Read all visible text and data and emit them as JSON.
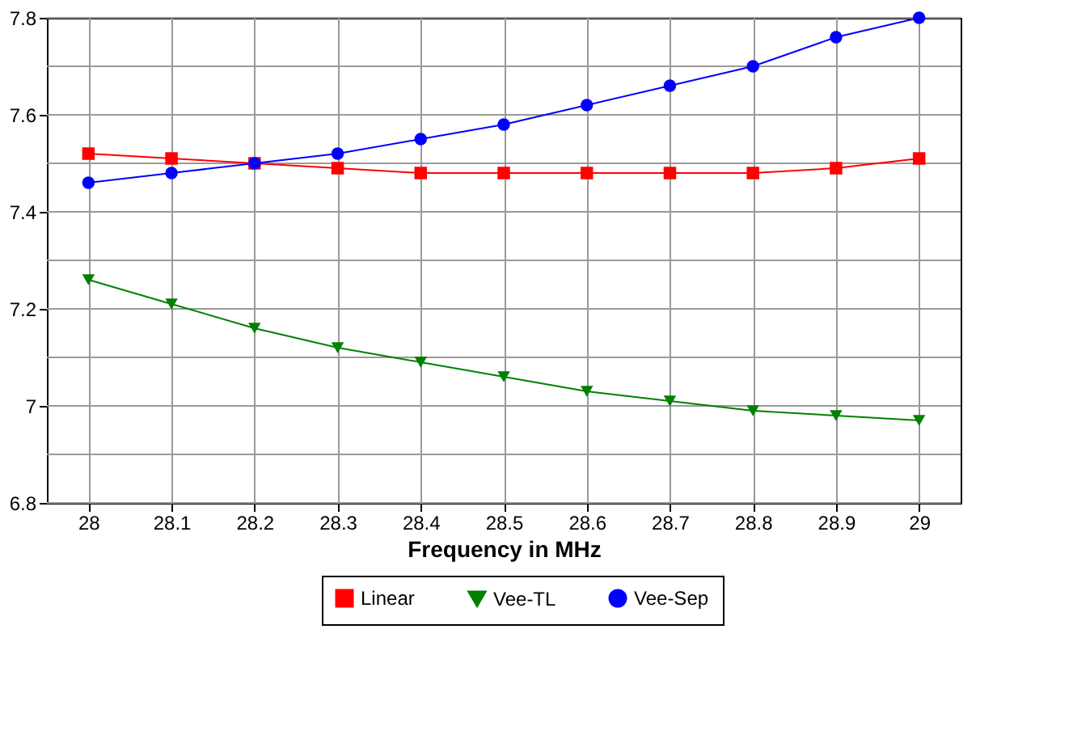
{
  "chart_data": {
    "type": "line",
    "xlabel": "Frequency in MHz",
    "x": [
      28,
      28.1,
      28.2,
      28.3,
      28.4,
      28.5,
      28.6,
      28.7,
      28.8,
      28.9,
      29
    ],
    "series": [
      {
        "name": "Linear",
        "color": "#ff0000",
        "marker": "square",
        "values": [
          7.52,
          7.51,
          7.5,
          7.49,
          7.48,
          7.48,
          7.48,
          7.48,
          7.48,
          7.49,
          7.51
        ]
      },
      {
        "name": "Vee-TL",
        "color": "#008000",
        "marker": "triangle",
        "values": [
          7.26,
          7.21,
          7.16,
          7.12,
          7.09,
          7.06,
          7.03,
          7.01,
          6.99,
          6.98,
          6.97
        ]
      },
      {
        "name": "Vee-Sep",
        "color": "#0000ff",
        "marker": "circle",
        "values": [
          7.46,
          7.48,
          7.5,
          7.52,
          7.55,
          7.58,
          7.62,
          7.66,
          7.7,
          7.76,
          7.8
        ]
      }
    ],
    "xlim": [
      27.95,
      29.05
    ],
    "xticks": [
      28,
      28.1,
      28.2,
      28.3,
      28.4,
      28.5,
      28.6,
      28.7,
      28.8,
      28.9,
      29
    ],
    "ylim": [
      6.8,
      7.8
    ],
    "yticks": [
      6.8,
      {
        "value": 6.9,
        "label": null
      },
      7,
      {
        "value": 7.1,
        "label": null
      },
      7.2,
      {
        "value": 7.3,
        "label": null
      },
      7.4,
      {
        "value": 7.5,
        "label": null
      },
      7.6,
      {
        "value": 7.7,
        "label": null
      },
      7.8
    ],
    "grid": true,
    "legend": "bottom",
    "line_style": "solid"
  }
}
